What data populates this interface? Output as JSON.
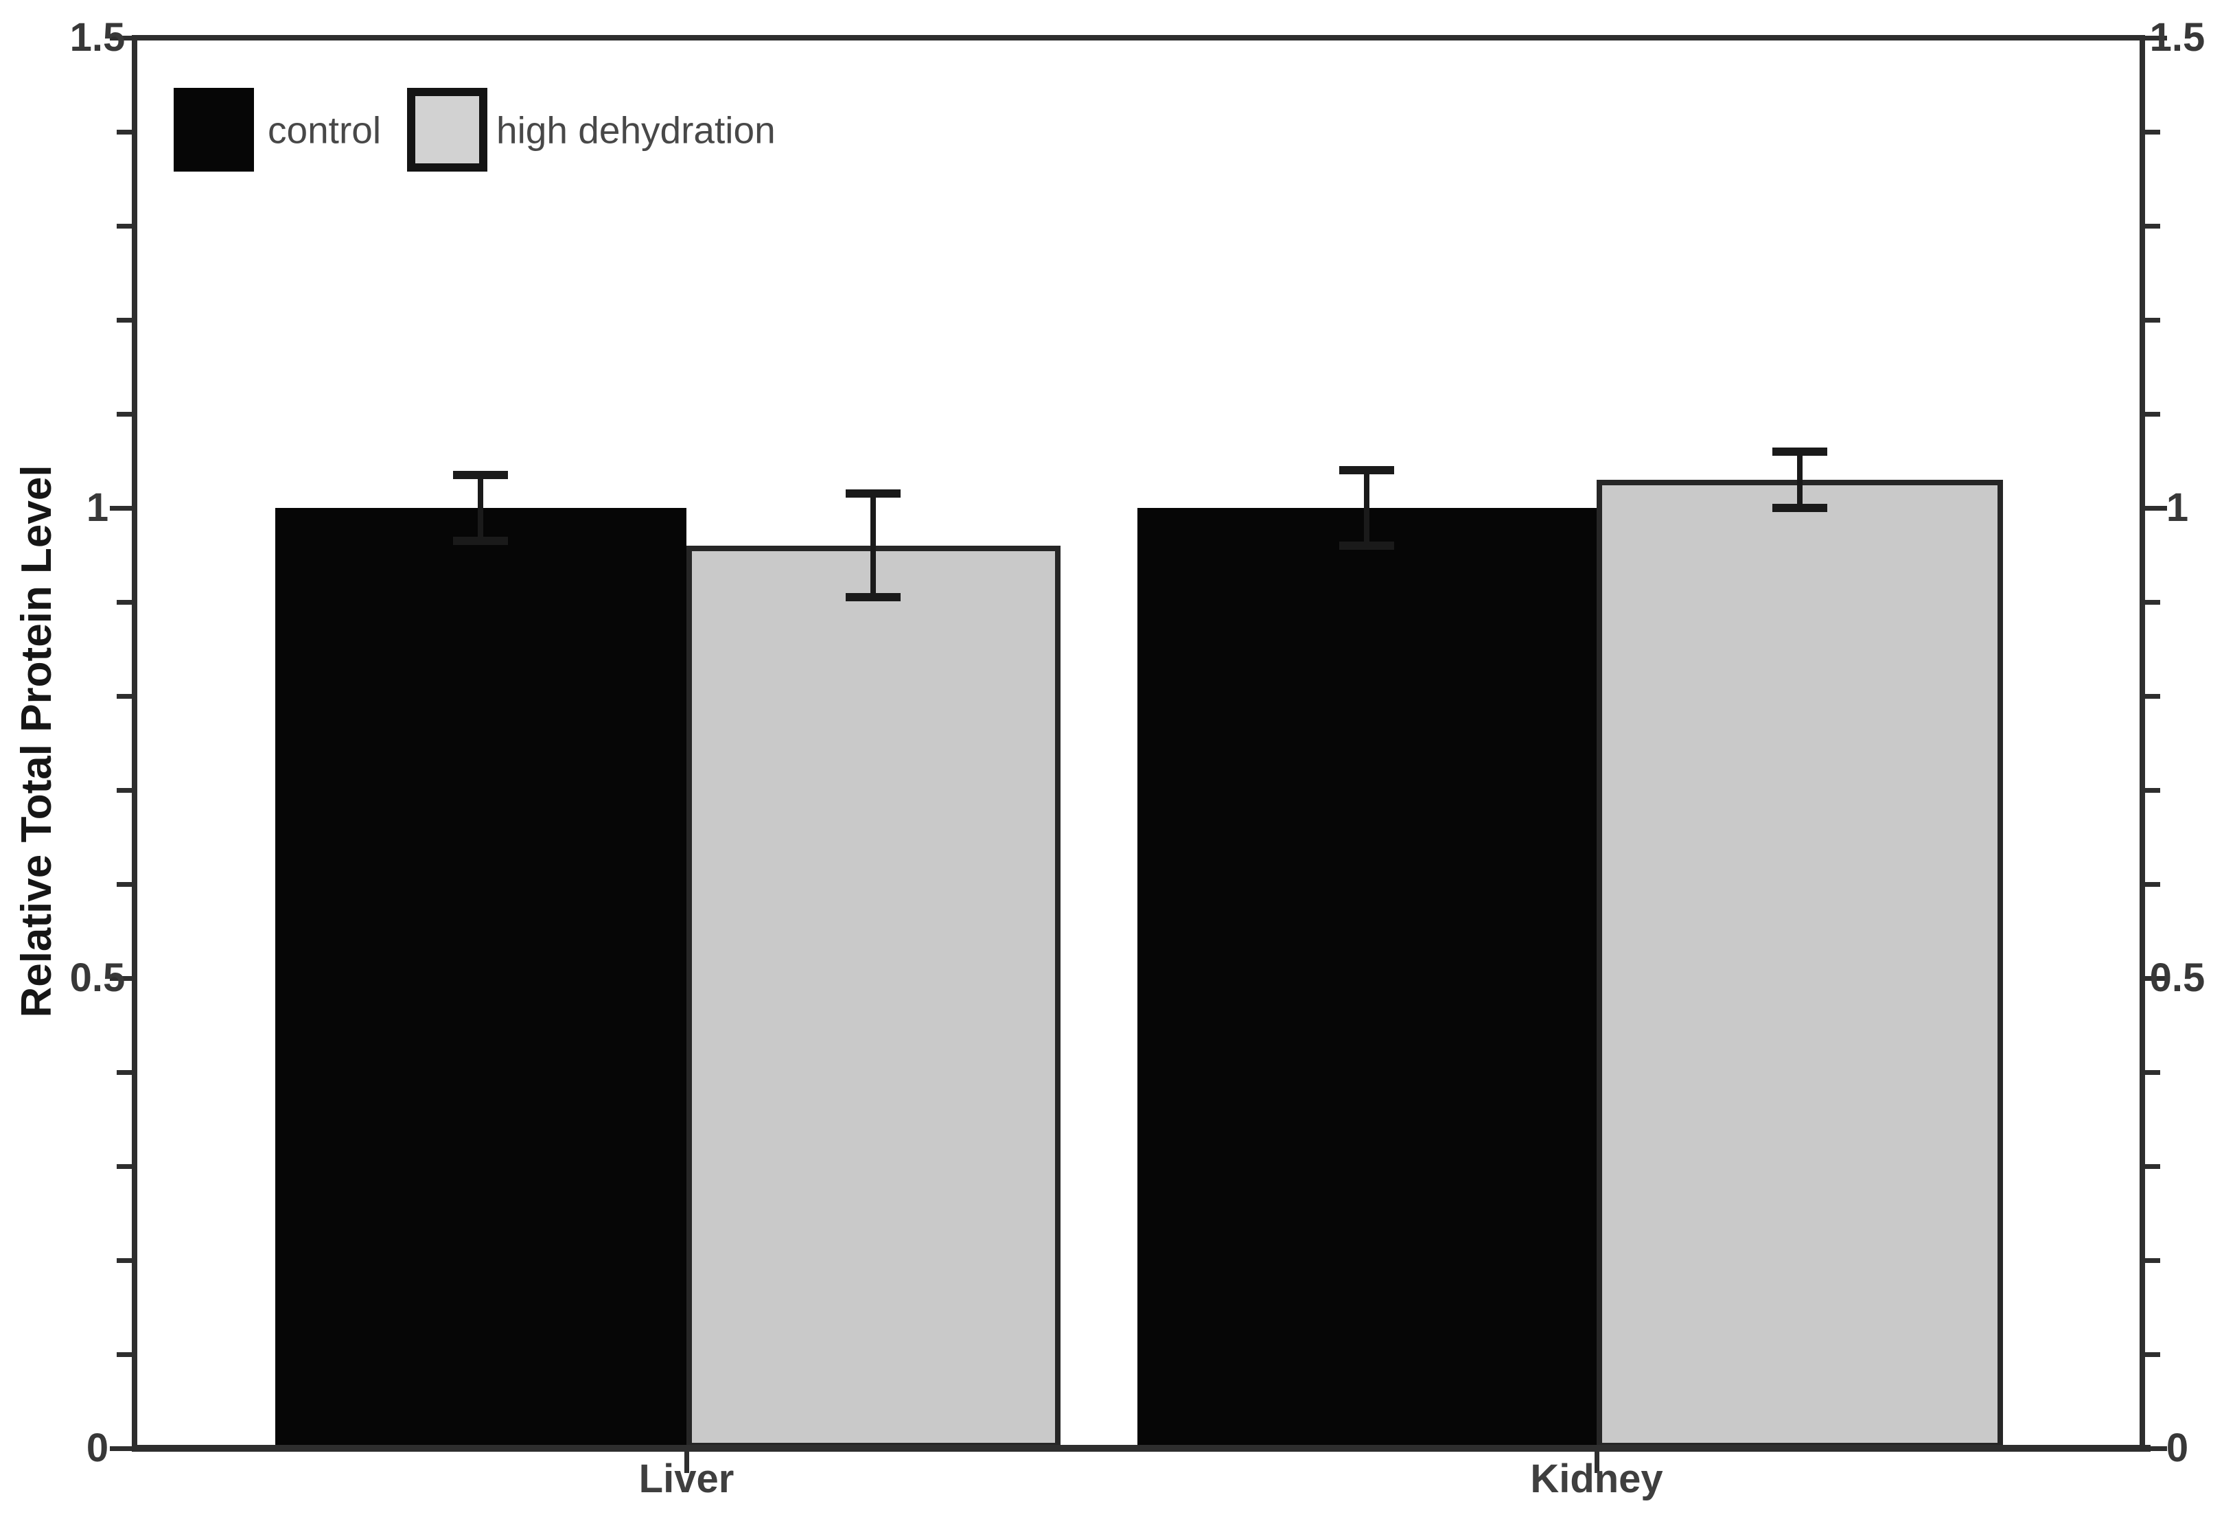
{
  "chart_data": {
    "type": "bar",
    "title": "",
    "xlabel": "",
    "ylabel": "Relative Total Protein Level",
    "categories": [
      "Liver",
      "Kidney"
    ],
    "series": [
      {
        "name": "control",
        "fill": "#060606",
        "values": [
          1.0,
          1.0
        ],
        "errors": [
          0.035,
          0.04
        ]
      },
      {
        "name": "high dehydration",
        "fill": "#c9c9c9",
        "values": [
          0.96,
          1.03
        ],
        "errors": [
          0.055,
          0.03
        ]
      }
    ],
    "ylim": [
      0,
      1.5
    ],
    "ytick_major": [
      0,
      0.5,
      1,
      1.5
    ],
    "ytick_labels": [
      "0",
      "0.5",
      "1",
      "1.5"
    ],
    "ytick_minor_step": 0.1,
    "right_axis_mirrored_labels": true,
    "error_bars": true,
    "grid": false,
    "legend_position": "top-left",
    "colors": {
      "control_fill": "#060606",
      "dehydration_fill": "#c9c9c9",
      "bar_border": "#262626",
      "axis": "#2e2e2e",
      "error_bar": "#1a1a1a",
      "tick_label": "#383838",
      "background": "#ffffff"
    }
  }
}
